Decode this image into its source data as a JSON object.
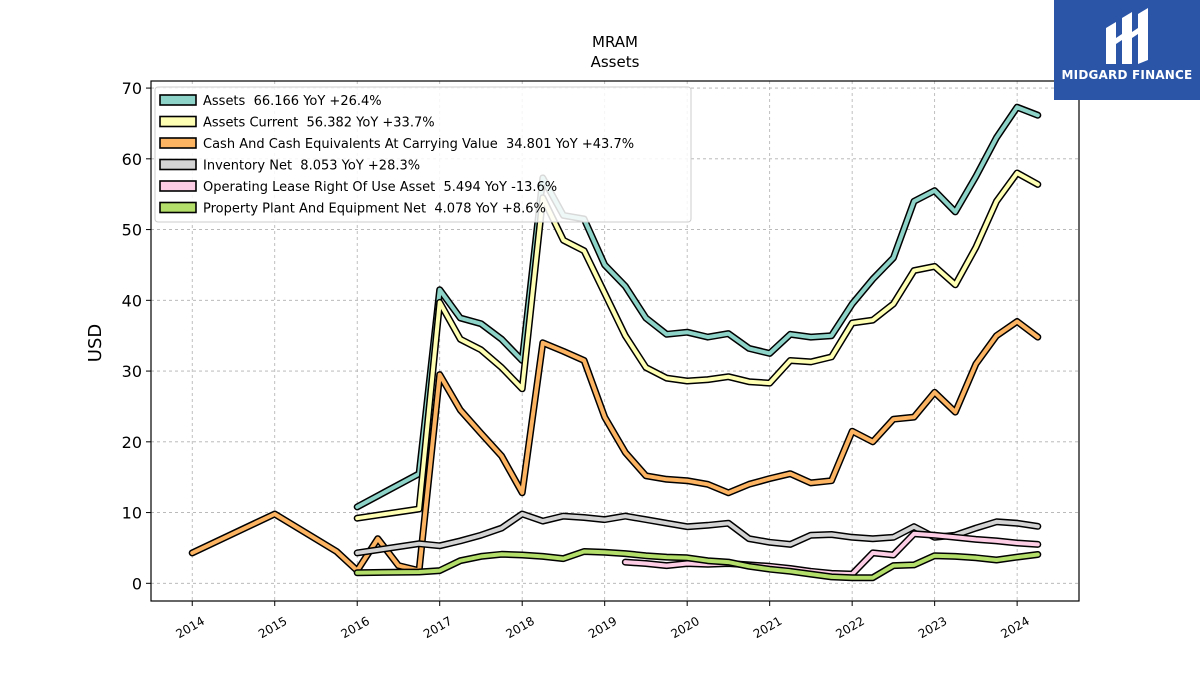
{
  "brand": {
    "name": "MIDGARD FINANCE",
    "bg_color": "#2b56a8"
  },
  "chart_data": {
    "type": "line",
    "title": "MRAM",
    "subtitle": "Assets",
    "ylabel": "USD",
    "xlabel": "",
    "ylim": [
      -2.5,
      71
    ],
    "xlim": [
      2013.5,
      2024.75
    ],
    "yticks": [
      0,
      10,
      20,
      30,
      40,
      50,
      60,
      70
    ],
    "xticks": [
      "2014",
      "2015",
      "2016",
      "2017",
      "2018",
      "2019",
      "2020",
      "2021",
      "2022",
      "2023",
      "2024"
    ],
    "grid": true,
    "legend_position": "top-left",
    "series": [
      {
        "name": "Assets  66.166 YoY +26.4%",
        "color": "#8dd3c7",
        "points": [
          [
            2016.0,
            10.8
          ],
          [
            2016.75,
            15.5
          ],
          [
            2017.0,
            41.5
          ],
          [
            2017.25,
            37.5
          ],
          [
            2017.5,
            36.7
          ],
          [
            2017.75,
            34.5
          ],
          [
            2018.0,
            31.5
          ],
          [
            2018.25,
            57.3
          ],
          [
            2018.5,
            52.0
          ],
          [
            2018.75,
            51.5
          ],
          [
            2019.0,
            45.0
          ],
          [
            2019.25,
            42.0
          ],
          [
            2019.5,
            37.5
          ],
          [
            2019.75,
            35.2
          ],
          [
            2020.0,
            35.5
          ],
          [
            2020.25,
            34.8
          ],
          [
            2020.5,
            35.3
          ],
          [
            2020.75,
            33.2
          ],
          [
            2021.0,
            32.5
          ],
          [
            2021.25,
            35.2
          ],
          [
            2021.5,
            34.8
          ],
          [
            2021.75,
            35.0
          ],
          [
            2022.0,
            39.5
          ],
          [
            2022.25,
            43.0
          ],
          [
            2022.5,
            46.0
          ],
          [
            2022.75,
            54.0
          ],
          [
            2023.0,
            55.5
          ],
          [
            2023.25,
            52.5
          ],
          [
            2023.5,
            57.5
          ],
          [
            2023.75,
            63.0
          ],
          [
            2024.0,
            67.3
          ],
          [
            2024.25,
            66.166
          ]
        ]
      },
      {
        "name": "Assets Current  56.382 YoY +33.7%",
        "color": "#ffffb3",
        "points": [
          [
            2016.0,
            9.2
          ],
          [
            2016.75,
            10.5
          ],
          [
            2017.0,
            39.7
          ],
          [
            2017.25,
            34.5
          ],
          [
            2017.5,
            33.0
          ],
          [
            2017.75,
            30.5
          ],
          [
            2018.0,
            27.5
          ],
          [
            2018.25,
            54.5
          ],
          [
            2018.5,
            48.5
          ],
          [
            2018.75,
            47.0
          ],
          [
            2019.0,
            41.0
          ],
          [
            2019.25,
            35.0
          ],
          [
            2019.5,
            30.5
          ],
          [
            2019.75,
            29.0
          ],
          [
            2020.0,
            28.6
          ],
          [
            2020.25,
            28.8
          ],
          [
            2020.5,
            29.2
          ],
          [
            2020.75,
            28.5
          ],
          [
            2021.0,
            28.3
          ],
          [
            2021.25,
            31.5
          ],
          [
            2021.5,
            31.3
          ],
          [
            2021.75,
            32.0
          ],
          [
            2022.0,
            36.8
          ],
          [
            2022.25,
            37.2
          ],
          [
            2022.5,
            39.5
          ],
          [
            2022.75,
            44.2
          ],
          [
            2023.0,
            44.8
          ],
          [
            2023.25,
            42.2
          ],
          [
            2023.5,
            47.5
          ],
          [
            2023.75,
            54.0
          ],
          [
            2024.0,
            58.0
          ],
          [
            2024.25,
            56.382
          ]
        ]
      },
      {
        "name": "Cash And Cash Equivalents At Carrying Value  34.801 YoY +43.7%",
        "color": "#fdb462",
        "points": [
          [
            2014.0,
            4.3
          ],
          [
            2015.0,
            9.8
          ],
          [
            2015.75,
            4.5
          ],
          [
            2016.0,
            1.8
          ],
          [
            2016.25,
            6.3
          ],
          [
            2016.5,
            2.5
          ],
          [
            2016.75,
            1.8
          ],
          [
            2017.0,
            29.5
          ],
          [
            2017.25,
            24.5
          ],
          [
            2017.5,
            21.2
          ],
          [
            2017.75,
            18.0
          ],
          [
            2018.0,
            12.8
          ],
          [
            2018.25,
            34.0
          ],
          [
            2018.5,
            32.8
          ],
          [
            2018.75,
            31.5
          ],
          [
            2019.0,
            23.5
          ],
          [
            2019.25,
            18.5
          ],
          [
            2019.5,
            15.2
          ],
          [
            2019.75,
            14.7
          ],
          [
            2020.0,
            14.5
          ],
          [
            2020.25,
            14.0
          ],
          [
            2020.5,
            12.8
          ],
          [
            2020.75,
            14.0
          ],
          [
            2021.0,
            14.8
          ],
          [
            2021.25,
            15.5
          ],
          [
            2021.5,
            14.2
          ],
          [
            2021.75,
            14.5
          ],
          [
            2022.0,
            21.5
          ],
          [
            2022.25,
            20.0
          ],
          [
            2022.5,
            23.2
          ],
          [
            2022.75,
            23.5
          ],
          [
            2023.0,
            27.0
          ],
          [
            2023.25,
            24.2
          ],
          [
            2023.5,
            31.0
          ],
          [
            2023.75,
            35.0
          ],
          [
            2024.0,
            37.0
          ],
          [
            2024.25,
            34.801
          ]
        ]
      },
      {
        "name": "Inventory Net  8.053 YoY +28.3%",
        "color": "#d3d3d3",
        "points": [
          [
            2016.0,
            4.3
          ],
          [
            2016.75,
            5.6
          ],
          [
            2017.0,
            5.3
          ],
          [
            2017.25,
            6.0
          ],
          [
            2017.5,
            6.8
          ],
          [
            2017.75,
            7.8
          ],
          [
            2018.0,
            9.8
          ],
          [
            2018.25,
            8.8
          ],
          [
            2018.5,
            9.5
          ],
          [
            2018.75,
            9.3
          ],
          [
            2019.0,
            9.0
          ],
          [
            2019.25,
            9.5
          ],
          [
            2019.5,
            9.0
          ],
          [
            2019.75,
            8.5
          ],
          [
            2020.0,
            8.0
          ],
          [
            2020.25,
            8.2
          ],
          [
            2020.5,
            8.5
          ],
          [
            2020.75,
            6.3
          ],
          [
            2021.0,
            5.8
          ],
          [
            2021.25,
            5.5
          ],
          [
            2021.5,
            6.8
          ],
          [
            2021.75,
            6.9
          ],
          [
            2022.0,
            6.5
          ],
          [
            2022.25,
            6.3
          ],
          [
            2022.5,
            6.5
          ],
          [
            2022.75,
            8.0
          ],
          [
            2023.0,
            6.5
          ],
          [
            2023.25,
            6.8
          ],
          [
            2023.5,
            7.8
          ],
          [
            2023.75,
            8.7
          ],
          [
            2024.0,
            8.5
          ],
          [
            2024.25,
            8.053
          ]
        ]
      },
      {
        "name": "Operating Lease Right Of Use Asset  5.494 YoY -13.6%",
        "color": "#fccde5",
        "points": [
          [
            2019.25,
            3.0
          ],
          [
            2019.5,
            2.8
          ],
          [
            2019.75,
            2.5
          ],
          [
            2020.0,
            2.8
          ],
          [
            2020.25,
            2.7
          ],
          [
            2020.5,
            2.8
          ],
          [
            2020.75,
            2.6
          ],
          [
            2021.0,
            2.4
          ],
          [
            2021.25,
            2.1
          ],
          [
            2021.5,
            1.7
          ],
          [
            2021.75,
            1.4
          ],
          [
            2022.0,
            1.3
          ],
          [
            2022.25,
            4.3
          ],
          [
            2022.5,
            4.0
          ],
          [
            2022.75,
            7.0
          ],
          [
            2023.0,
            6.8
          ],
          [
            2023.25,
            6.5
          ],
          [
            2023.5,
            6.2
          ],
          [
            2023.75,
            6.0
          ],
          [
            2024.0,
            5.7
          ],
          [
            2024.25,
            5.494
          ]
        ]
      },
      {
        "name": "Property Plant And Equipment Net  4.078 YoY +8.6%",
        "color": "#b3de69",
        "points": [
          [
            2016.0,
            1.5
          ],
          [
            2016.75,
            1.6
          ],
          [
            2017.0,
            1.8
          ],
          [
            2017.25,
            3.2
          ],
          [
            2017.5,
            3.8
          ],
          [
            2017.75,
            4.1
          ],
          [
            2018.0,
            4.0
          ],
          [
            2018.25,
            3.8
          ],
          [
            2018.5,
            3.5
          ],
          [
            2018.75,
            4.5
          ],
          [
            2019.0,
            4.4
          ],
          [
            2019.25,
            4.2
          ],
          [
            2019.5,
            3.9
          ],
          [
            2019.75,
            3.7
          ],
          [
            2020.0,
            3.6
          ],
          [
            2020.25,
            3.2
          ],
          [
            2020.5,
            3.0
          ],
          [
            2020.75,
            2.4
          ],
          [
            2021.0,
            2.0
          ],
          [
            2021.25,
            1.7
          ],
          [
            2021.5,
            1.3
          ],
          [
            2021.75,
            0.9
          ],
          [
            2022.0,
            0.8
          ],
          [
            2022.25,
            0.8
          ],
          [
            2022.5,
            2.5
          ],
          [
            2022.75,
            2.6
          ],
          [
            2023.0,
            3.9
          ],
          [
            2023.25,
            3.8
          ],
          [
            2023.5,
            3.6
          ],
          [
            2023.75,
            3.3
          ],
          [
            2024.0,
            3.7
          ],
          [
            2024.25,
            4.078
          ]
        ]
      }
    ]
  }
}
